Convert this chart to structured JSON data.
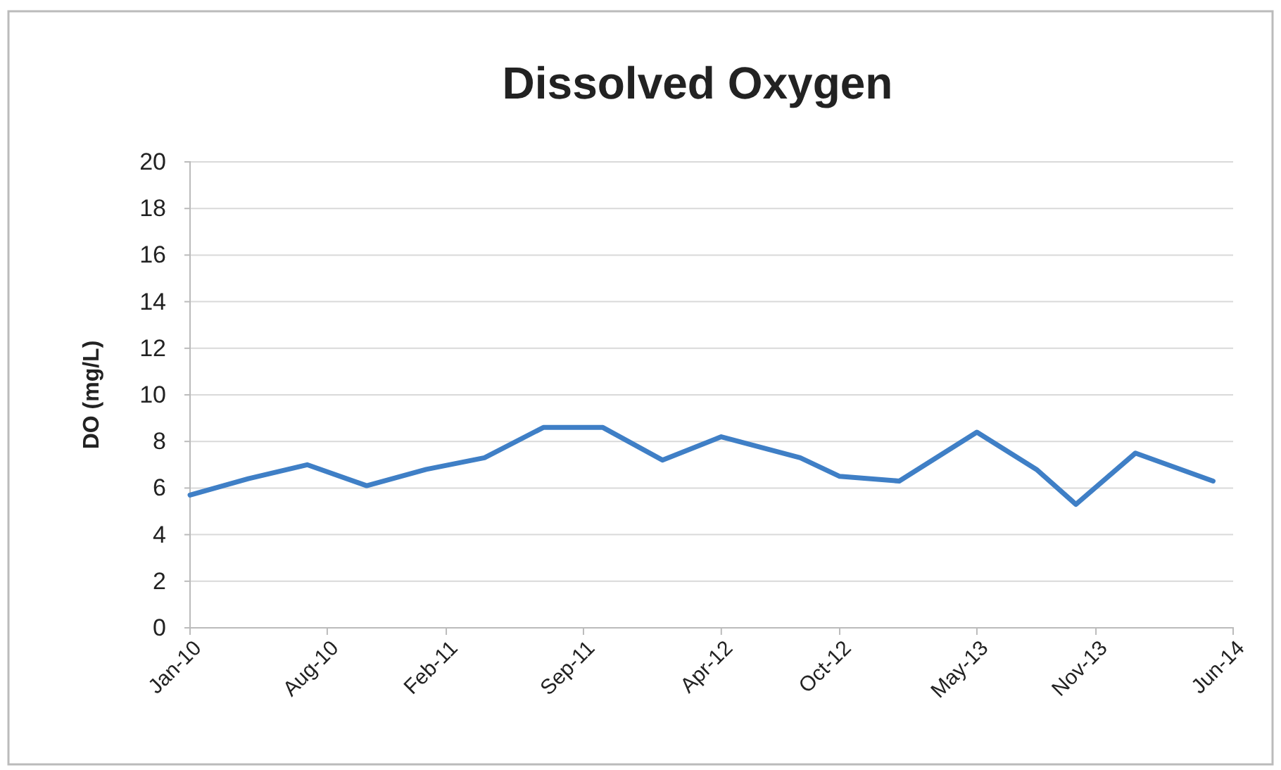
{
  "chart_data": {
    "type": "line",
    "title": "Dissolved Oxygen",
    "ylabel": "DO (mg/L)",
    "x": [
      "2010-01",
      "2010-04",
      "2010-07",
      "2010-10",
      "2011-01",
      "2011-04",
      "2011-07",
      "2011-10",
      "2012-01",
      "2012-04",
      "2012-08",
      "2012-10",
      "2013-01",
      "2013-05",
      "2013-08",
      "2013-10",
      "2014-01",
      "2014-05"
    ],
    "series": [
      {
        "color": "#3f7fc6",
        "values": [
          5.7,
          6.4,
          7.0,
          6.1,
          6.8,
          7.3,
          8.6,
          8.6,
          7.2,
          8.2,
          7.3,
          6.5,
          6.3,
          8.4,
          6.8,
          5.3,
          7.5,
          6.3
        ]
      }
    ],
    "xlim": [
      "2010-01-01",
      "2014-06-01"
    ],
    "xticks": [
      {
        "value": "2010-01-01",
        "label": "Jan-10"
      },
      {
        "value": "2010-08-01",
        "label": "Aug-10"
      },
      {
        "value": "2011-02-01",
        "label": "Feb-11"
      },
      {
        "value": "2011-09-01",
        "label": "Sep-11"
      },
      {
        "value": "2012-04-01",
        "label": "Apr-12"
      },
      {
        "value": "2012-10-01",
        "label": "Oct-12"
      },
      {
        "value": "2013-05-01",
        "label": "May-13"
      },
      {
        "value": "2013-11-01",
        "label": "Nov-13"
      },
      {
        "value": "2014-06-01",
        "label": "Jun-14"
      }
    ],
    "ylim": [
      0,
      20
    ],
    "yticks": [
      0,
      2,
      4,
      6,
      8,
      10,
      12,
      14,
      16,
      18,
      20
    ],
    "grid": "y",
    "marker": "none",
    "line_style": "solid"
  }
}
